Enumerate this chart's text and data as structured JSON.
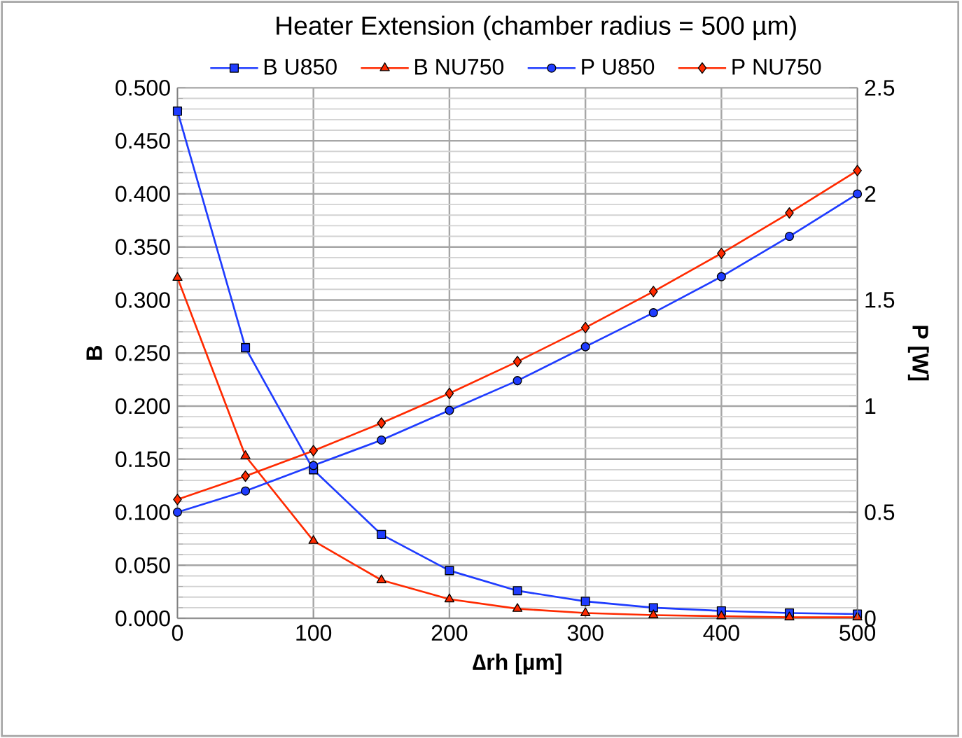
{
  "chart_data": {
    "type": "line",
    "title": "Heater Extension (chamber radius = 500 µm)",
    "xlabel": "**∆rh [µm]**",
    "ylabel": "**B**",
    "y2label": "**P [W]**",
    "x": [
      0,
      50,
      100,
      150,
      200,
      250,
      300,
      350,
      400,
      450,
      500
    ],
    "series": [
      {
        "name": "B U850",
        "color": "#1f3cff",
        "marker": "square",
        "values": [
          0.478,
          0.255,
          0.14,
          0.079,
          0.045,
          0.026,
          0.016,
          0.01,
          0.007,
          0.005,
          0.004
        ]
      },
      {
        "name": "B NU750",
        "color": "#ff2a00",
        "marker": "triangle",
        "values": [
          0.321,
          0.153,
          0.073,
          0.036,
          0.018,
          0.009,
          0.005,
          0.003,
          0.002,
          0.001,
          0.001
        ]
      },
      {
        "name": "P U850",
        "color": "#1f3cff",
        "marker": "circle",
        "axis": "y2",
        "values": [
          0.5,
          0.6,
          0.72,
          0.84,
          0.98,
          1.12,
          1.28,
          1.44,
          1.61,
          1.8,
          2.0
        ]
      },
      {
        "name": "P NU750",
        "color": "#ff2a00",
        "marker": "diamond",
        "axis": "y2",
        "values": [
          0.56,
          0.67,
          0.79,
          0.92,
          1.06,
          1.21,
          1.37,
          1.54,
          1.72,
          1.91,
          2.11
        ]
      }
    ],
    "xlim": [
      0,
      500
    ],
    "xticks": [
      0,
      100,
      200,
      300,
      400,
      500
    ],
    "ylim": [
      0,
      0.5
    ],
    "yticks": [
      {
        "value": 0,
        "label": "0.000"
      },
      {
        "value": 0.05,
        "label": "0.050"
      },
      {
        "value": 0.1,
        "label": "0.100"
      },
      {
        "value": 0.15,
        "label": "0.150"
      },
      {
        "value": 0.2,
        "label": "0.200"
      },
      {
        "value": 0.25,
        "label": "0.250"
      },
      {
        "value": 0.3,
        "label": "0.300"
      },
      {
        "value": 0.35,
        "label": "0.350"
      },
      {
        "value": 0.4,
        "label": "0.400"
      },
      {
        "value": 0.45,
        "label": "0.450"
      },
      {
        "value": 0.5,
        "label": "0.500"
      }
    ],
    "y2lim": [
      0,
      2.5
    ],
    "y2ticks": [
      0,
      0.5,
      1,
      1.5,
      2,
      2.5
    ],
    "grid": true,
    "legend": "top"
  }
}
